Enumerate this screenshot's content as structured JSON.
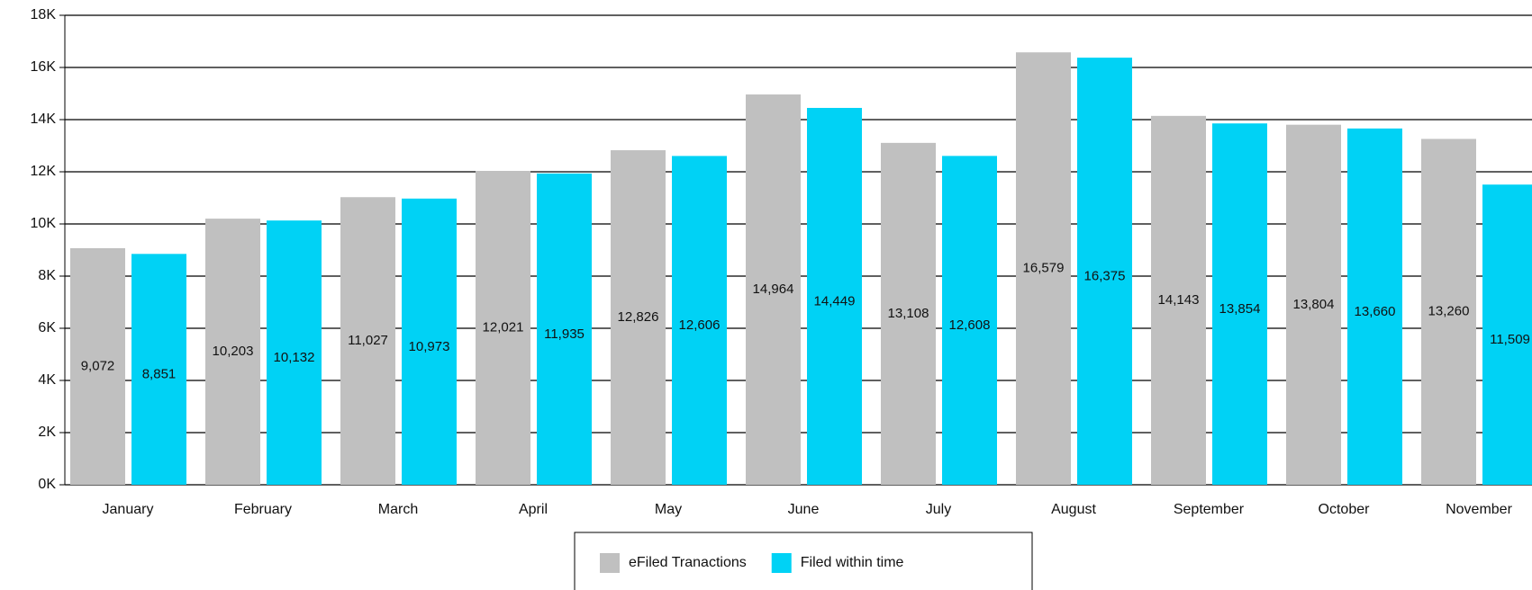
{
  "chart_data": {
    "type": "bar",
    "categories": [
      "January",
      "February",
      "March",
      "April",
      "May",
      "June",
      "July",
      "August",
      "September",
      "October",
      "November"
    ],
    "series": [
      {
        "name": "eFiled Tranactions",
        "color": "#c0c0c0",
        "values": [
          9072,
          10203,
          11027,
          12021,
          12826,
          14964,
          13108,
          16579,
          14143,
          13804,
          13260
        ],
        "value_labels": [
          "9,072",
          "10,203",
          "11,027",
          "12,021",
          "12,826",
          "14,964",
          "13,108",
          "16,579",
          "14,143",
          "13,804",
          "13,260"
        ]
      },
      {
        "name": "Filed within time",
        "color": "#00d2f5",
        "values": [
          8851,
          10132,
          10973,
          11935,
          12606,
          14449,
          12608,
          16375,
          13854,
          13660,
          11509
        ],
        "value_labels": [
          "8,851",
          "10,132",
          "10,973",
          "11,935",
          "12,606",
          "14,449",
          "12,608",
          "16,375",
          "13,854",
          "13,660",
          "11,509"
        ]
      }
    ],
    "ylim": [
      0,
      18000
    ],
    "yticks": [
      {
        "value": 0,
        "label": "0K"
      },
      {
        "value": 2000,
        "label": "2K"
      },
      {
        "value": 4000,
        "label": "4K"
      },
      {
        "value": 6000,
        "label": "6K"
      },
      {
        "value": 8000,
        "label": "8K"
      },
      {
        "value": 10000,
        "label": "10K"
      },
      {
        "value": 12000,
        "label": "12K"
      },
      {
        "value": 14000,
        "label": "14K"
      },
      {
        "value": 16000,
        "label": "16K"
      },
      {
        "value": 18000,
        "label": "18K"
      }
    ],
    "grid": true,
    "legend": "bottom"
  }
}
